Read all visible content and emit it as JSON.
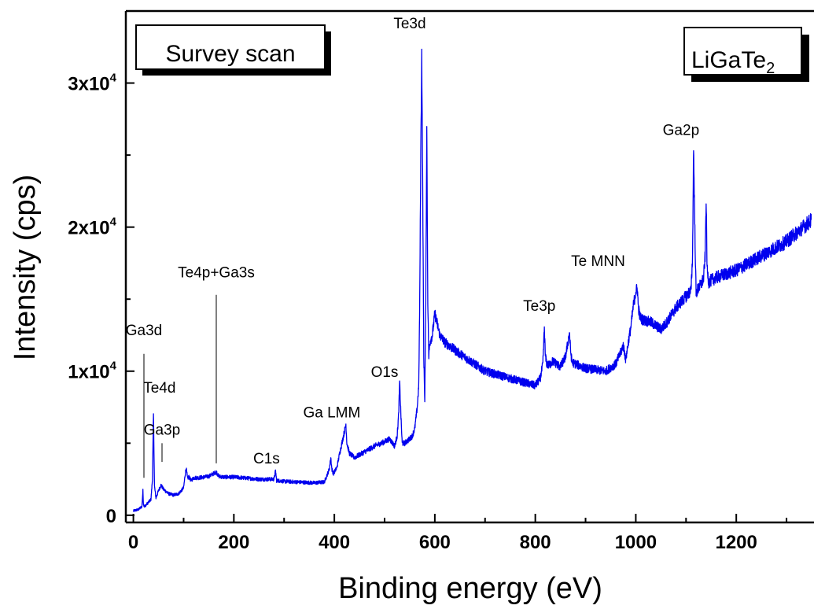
{
  "chart_data": {
    "type": "line",
    "xlabel": "Binding energy (eV)",
    "ylabel": "Intensity (cps)",
    "xlim": [
      -15,
      1350
    ],
    "ylim": [
      -500,
      35000
    ],
    "x_ticks": [
      0,
      200,
      400,
      600,
      800,
      1000,
      1200
    ],
    "x_minor_ticks": [
      100,
      300,
      500,
      700,
      900,
      1100,
      1300
    ],
    "y_ticks": [
      0,
      10000,
      20000,
      30000
    ],
    "y_tick_labels": [
      {
        "base": "0",
        "exp": ""
      },
      {
        "base": "1x10",
        "exp": "4"
      },
      {
        "base": "2x10",
        "exp": "4"
      },
      {
        "base": "3x10",
        "exp": "4"
      }
    ],
    "y_minor_ticks": [
      5000,
      15000,
      25000
    ],
    "grid": false,
    "line_color": "#0000ee",
    "series": [
      {
        "x": [
          0,
          10,
          17,
          19,
          20,
          22,
          25,
          30,
          35,
          38,
          40,
          42,
          45,
          50,
          55,
          60,
          70,
          80,
          90,
          100,
          103,
          105,
          108,
          110,
          115,
          120,
          130,
          150,
          160,
          165,
          170,
          180,
          200,
          250,
          280,
          283,
          285,
          287,
          290,
          300,
          330,
          360,
          380,
          390,
          393,
          395,
          398,
          400,
          405,
          410,
          415,
          420,
          423,
          425,
          430,
          440,
          460,
          480,
          500,
          510,
          520,
          525,
          528,
          530,
          533,
          535,
          540,
          550,
          555,
          560,
          565,
          568,
          570,
          572,
          574,
          576,
          578,
          580,
          582,
          584,
          586,
          588,
          590,
          595,
          600,
          610,
          620,
          650,
          700,
          750,
          780,
          800,
          810,
          815,
          818,
          820,
          823,
          827,
          835,
          850,
          860,
          865,
          868,
          870,
          873,
          880,
          900,
          940,
          960,
          970,
          975,
          980,
          985,
          990,
          995,
          1000,
          1003,
          1005,
          1008,
          1012,
          1020,
          1030,
          1050,
          1060,
          1080,
          1100,
          1110,
          1113,
          1115,
          1118,
          1120,
          1125,
          1130,
          1135,
          1138,
          1140,
          1142,
          1145,
          1150,
          1160,
          1200,
          1250,
          1300,
          1350
        ],
        "y": [
          300,
          400,
          600,
          1700,
          800,
          600,
          700,
          900,
          1100,
          2500,
          7000,
          2000,
          1200,
          1700,
          2100,
          1800,
          1500,
          1400,
          1500,
          1900,
          2800,
          3300,
          2500,
          2700,
          2400,
          2600,
          2600,
          2700,
          2900,
          3000,
          2700,
          2650,
          2650,
          2500,
          2500,
          3100,
          2400,
          2400,
          2400,
          2350,
          2300,
          2250,
          2300,
          3200,
          4000,
          3200,
          2900,
          3000,
          3300,
          4200,
          5000,
          5800,
          6300,
          5000,
          4300,
          4000,
          4400,
          4800,
          5100,
          5300,
          4800,
          5500,
          7000,
          9200,
          6500,
          5000,
          5000,
          5300,
          5500,
          6000,
          7500,
          9000,
          15000,
          25000,
          32000,
          22000,
          11000,
          8000,
          15000,
          27000,
          15000,
          11000,
          12000,
          12500,
          14000,
          12500,
          12000,
          11200,
          10000,
          9500,
          9200,
          9000,
          9500,
          10500,
          13000,
          11000,
          10500,
          10400,
          10700,
          10300,
          11000,
          12000,
          12700,
          11500,
          10600,
          10500,
          10200,
          10000,
          10500,
          11300,
          11800,
          10800,
          12000,
          13000,
          14500,
          15500,
          15800,
          14500,
          13800,
          13600,
          13500,
          13400,
          12900,
          13300,
          14400,
          15200,
          15600,
          18000,
          25500,
          19000,
          15400,
          15800,
          16000,
          16500,
          18000,
          22000,
          17000,
          16200,
          16300,
          16500,
          17000,
          18000,
          19000,
          20500
        ]
      }
    ],
    "annotations": [
      {
        "text": "Ga3d",
        "x": 21,
        "y": 12500,
        "line_from_y": 2600,
        "line_to_y": 11200
      },
      {
        "text": "Te4d",
        "x": 52,
        "y": 8500
      },
      {
        "text": "Ga3p",
        "x": 57,
        "y": 5600,
        "line_from_y": 3700,
        "line_to_y": 5000
      },
      {
        "text": "Te4p+Ga3s",
        "x": 165,
        "y": 16500,
        "line_from_y": 3600,
        "line_to_y": 15300
      },
      {
        "text": "C1s",
        "x": 265,
        "y": 3600
      },
      {
        "text": "Ga LMM",
        "x": 395,
        "y": 6800
      },
      {
        "text": "O1s",
        "x": 500,
        "y": 9600
      },
      {
        "text": "Te3d",
        "x": 550,
        "y": 33800
      },
      {
        "text": "Te3p",
        "x": 808,
        "y": 14200
      },
      {
        "text": "Te MNN",
        "x": 925,
        "y": 17300
      },
      {
        "text": "Ga2p",
        "x": 1090,
        "y": 26400
      }
    ],
    "boxes": [
      {
        "text": "Survey scan",
        "position": "top-left"
      },
      {
        "text": "LiGaTe",
        "subscript": "2",
        "position": "top-right"
      }
    ]
  }
}
